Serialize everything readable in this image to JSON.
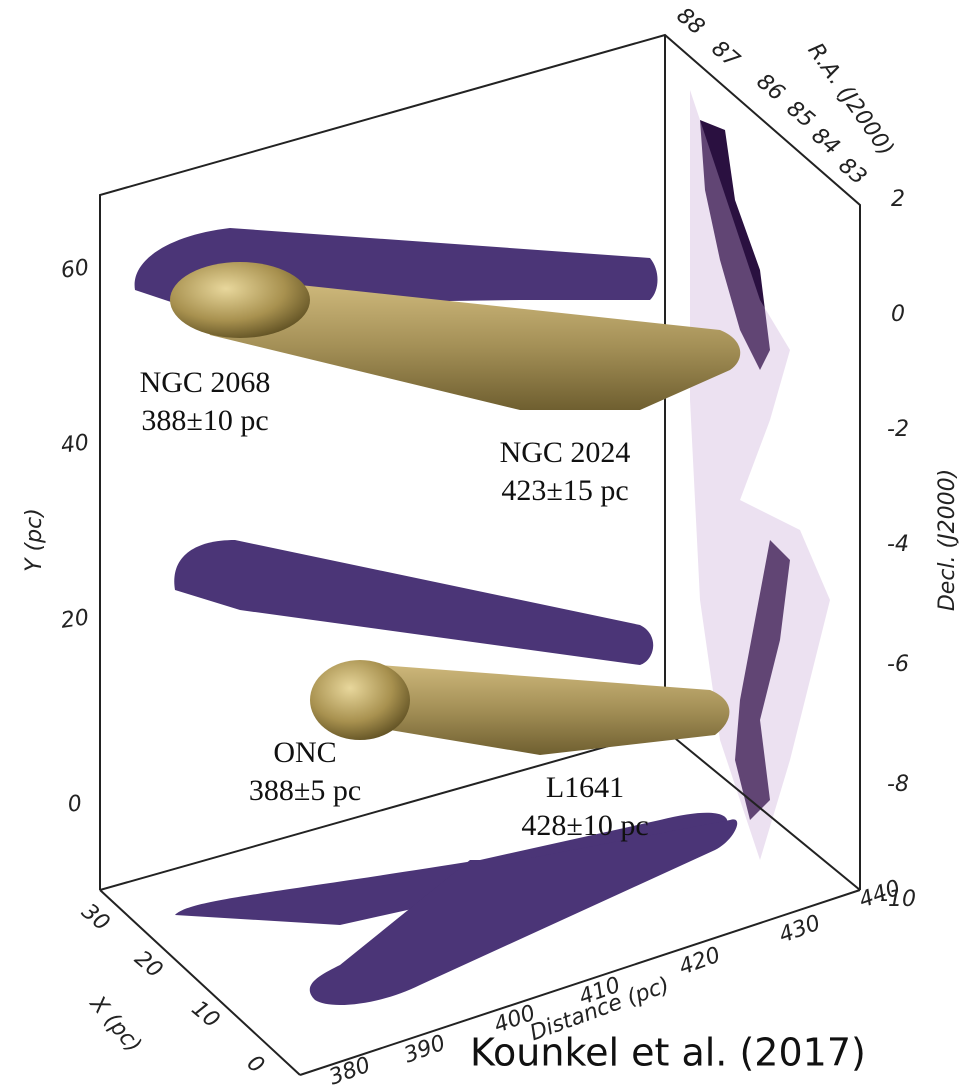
{
  "figure": {
    "y_axis": {
      "label": "Y (pc)",
      "ticks": [
        "0",
        "20",
        "40",
        "60"
      ]
    },
    "decl_axis": {
      "label": "Decl. (J2000)",
      "ticks": [
        "2",
        "0",
        "-2",
        "-4",
        "-6",
        "-8",
        "-10"
      ]
    },
    "ra_axis": {
      "label": "R.A. (J2000)",
      "ticks": [
        "88",
        "87",
        "86",
        "85",
        "84",
        "83"
      ]
    },
    "x_axis": {
      "label": "X (pc)",
      "ticks": [
        "30",
        "20",
        "10",
        "0"
      ]
    },
    "distance_axis": {
      "label": "Distance (pc)",
      "ticks": [
        "380",
        "390",
        "400",
        "410",
        "420",
        "430",
        "440"
      ]
    },
    "annotations": [
      {
        "name": "NGC 2068",
        "distance": "388±10 pc"
      },
      {
        "name": "NGC 2024",
        "distance": "423±15 pc"
      },
      {
        "name": "ONC",
        "distance": "388±5 pc"
      },
      {
        "name": "L1641",
        "distance": "428±10 pc"
      }
    ],
    "credit": "Kounkel et al. (2017)"
  }
}
